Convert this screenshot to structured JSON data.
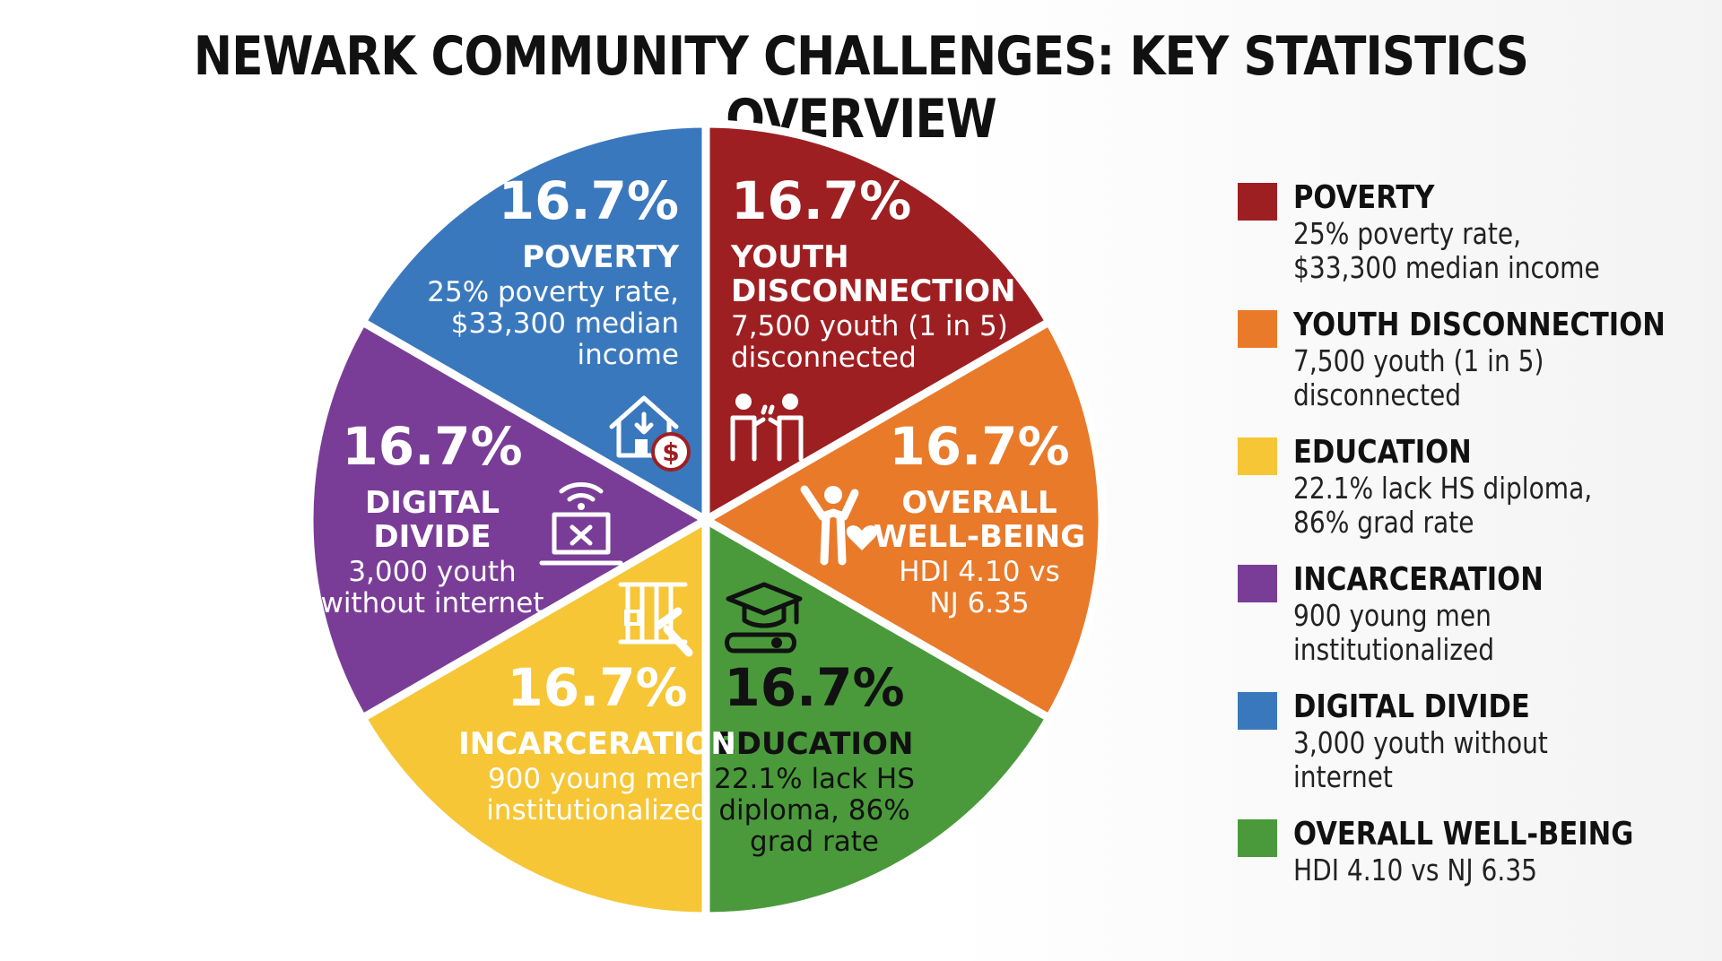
{
  "chart_data": {
    "type": "pie",
    "title": "NEWARK COMMUNITY CHALLENGES: KEY STATISTICS OVERVIEW",
    "legend_position": "right",
    "slices": [
      {
        "label": "POVERTY",
        "value": 16.7,
        "value_label": "16.7%",
        "description": [
          "25% poverty rate,",
          "$33,300 median",
          "income"
        ],
        "legend_description": [
          "25% poverty rate,",
          "$33,300 median income"
        ],
        "color": "#9e1f22",
        "text_color": "#ffffff",
        "icon": "house-dollar-icon"
      },
      {
        "label": "YOUTH DISCONNECTION",
        "label_lines": [
          "YOUTH",
          "DISCONNECTION"
        ],
        "value": 16.7,
        "value_label": "16.7%",
        "description": [
          "7,500 youth (1 in 5)",
          "disconnected"
        ],
        "legend_description": [
          "7,500 youth (1 in 5)",
          "disconnected"
        ],
        "color": "#e97a2a",
        "text_color": "#ffffff",
        "icon": "disconnected-people-icon"
      },
      {
        "label": "OVERALL WELL-BEING",
        "label_lines": [
          "OVERALL",
          "WELL-BEING"
        ],
        "value": 16.7,
        "value_label": "16.7%",
        "description": [
          "HDI 4.10 vs",
          "NJ 6.35"
        ],
        "legend_description": [
          "HDI 4.10 vs NJ 6.35"
        ],
        "color": "#4a9a3b",
        "text_color": "#ffffff",
        "icon": "person-heart-icon"
      },
      {
        "label": "EDUCATION",
        "value": 16.7,
        "value_label": "16.7%",
        "description": [
          "22.1% lack HS",
          "diploma, 86%",
          "grad rate"
        ],
        "legend_description": [
          "22.1% lack HS diploma,",
          "86% grad rate"
        ],
        "color": "#f6c636",
        "text_color": "#111111",
        "icon": "graduation-cap-icon"
      },
      {
        "label": "INCARCERATION",
        "value": 16.7,
        "value_label": "16.7%",
        "description": [
          "900 young men",
          "institutionalized"
        ],
        "legend_description": [
          "900 young men",
          "institutionalized"
        ],
        "color": "#7a3d97",
        "text_color": "#ffffff",
        "icon": "jail-gavel-icon"
      },
      {
        "label": "DIGITAL DIVIDE",
        "label_lines": [
          "DIGITAL",
          "DIVIDE"
        ],
        "value": 16.7,
        "value_label": "16.7%",
        "description": [
          "3,000 youth",
          "without internet"
        ],
        "legend_description": [
          "3,000 youth without",
          "internet"
        ],
        "color": "#3a78bd",
        "text_color": "#ffffff",
        "icon": "laptop-no-wifi-icon"
      }
    ],
    "legend_order": [
      "POVERTY",
      "YOUTH DISCONNECTION",
      "EDUCATION",
      "INCARCERATION",
      "DIGITAL DIVIDE",
      "OVERALL WELL-BEING"
    ]
  }
}
